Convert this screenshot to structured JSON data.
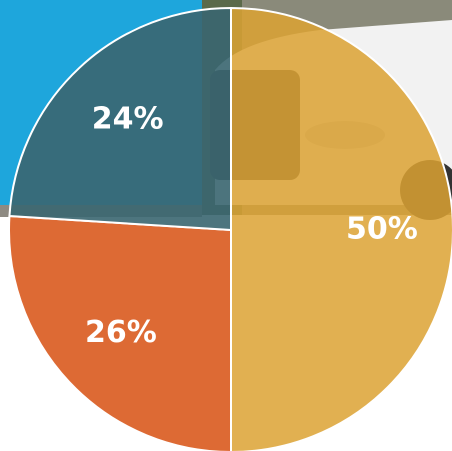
{
  "chart_data": {
    "type": "pie",
    "categories": [
      null,
      null,
      null
    ],
    "values": [
      50,
      26,
      24
    ],
    "value_labels": [
      "50%",
      "26%",
      "24%"
    ],
    "colors": [
      "#dca233",
      "#dd6a34",
      "#3a6670"
    ]
  }
}
